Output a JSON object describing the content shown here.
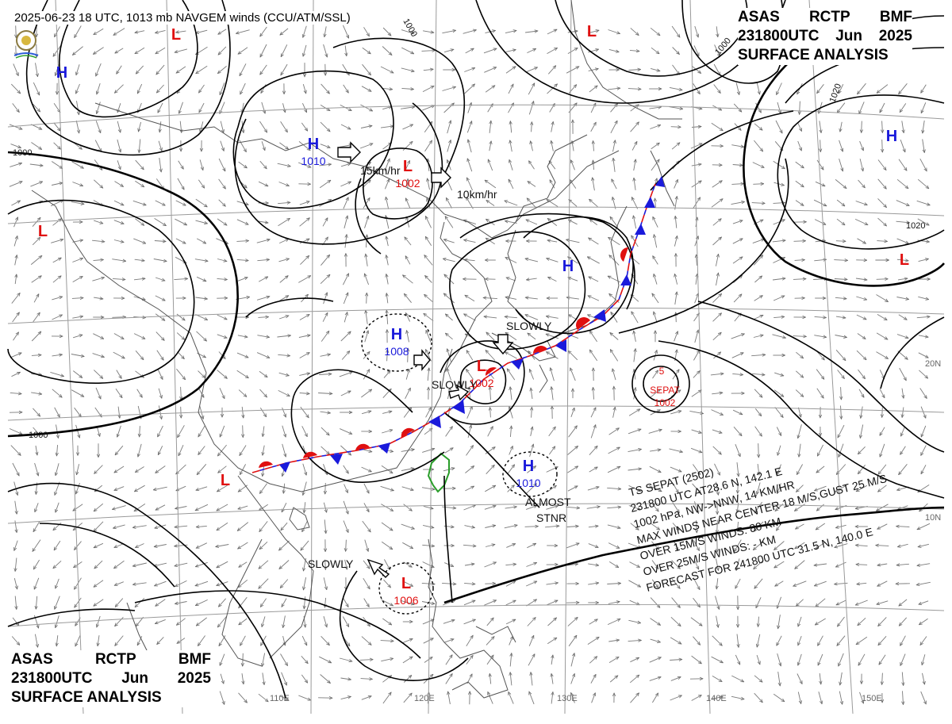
{
  "header": {
    "top_line": "2025-06-23 18 UTC, 1013 mb NAVGEM winds (CCU/ATM/SSL)",
    "block": {
      "line1": [
        "ASAS",
        "RCTP",
        "BMF"
      ],
      "line2": [
        "231800UTC",
        "Jun",
        "2025"
      ],
      "line3": "SURFACE ANALYSIS"
    }
  },
  "colors": {
    "high": "#1a1adb",
    "low": "#e01010",
    "warm_front": "#e01010",
    "cold_front": "#1a1adb",
    "isobar": "#000000",
    "coast": "#555555",
    "taiwan": "#2a9d2a"
  },
  "pressure_centers": [
    {
      "type": "L",
      "value": ""
    },
    {
      "type": "H",
      "value": ""
    },
    {
      "type": "H",
      "value": "1010"
    },
    {
      "type": "L",
      "value": "1002"
    },
    {
      "type": "L",
      "value": ""
    },
    {
      "type": "H",
      "value": "1008"
    },
    {
      "type": "L",
      "value": "1002"
    },
    {
      "type": "H",
      "value": ""
    },
    {
      "type": "L",
      "value": ""
    },
    {
      "type": "H",
      "value": ""
    },
    {
      "type": "L",
      "value": ""
    },
    {
      "type": "H",
      "value": "1010"
    },
    {
      "type": "L",
      "value": "1006"
    },
    {
      "type": "L",
      "value": ""
    }
  ],
  "movement_labels": [
    "15km/hr",
    "10km/hr",
    "SLOWLY",
    "SLOWLY",
    "SLOWLY",
    "ALMOST",
    "STNR"
  ],
  "isobar_labels": [
    "1000",
    "1000",
    "1000",
    "1000",
    "1020",
    "1020"
  ],
  "typhoon": {
    "name_label": "SEPAT",
    "pressure": "1002",
    "symbol": "5",
    "bulletin": [
      "TS  SEPAT  (2502)",
      "231800 UTC  AT28.6 N, 142.1 E",
      "1002 hPa, NW->NNW, 14 KM/HR",
      "MAX WINDS NEAR CENTER 18 M/S,GUST 25 M/S",
      "OVER 15M/S WINDS: 80 KM",
      "OVER 25M/S WINDS: - KM",
      "FORECAST FOR 241800 UTC 31.5 N, 140.0 E"
    ]
  },
  "grid": {
    "longitude_labels": [
      "110E",
      "120E",
      "130E",
      "140E",
      "150E"
    ],
    "latitude_labels": [
      "20N",
      "10N"
    ]
  }
}
